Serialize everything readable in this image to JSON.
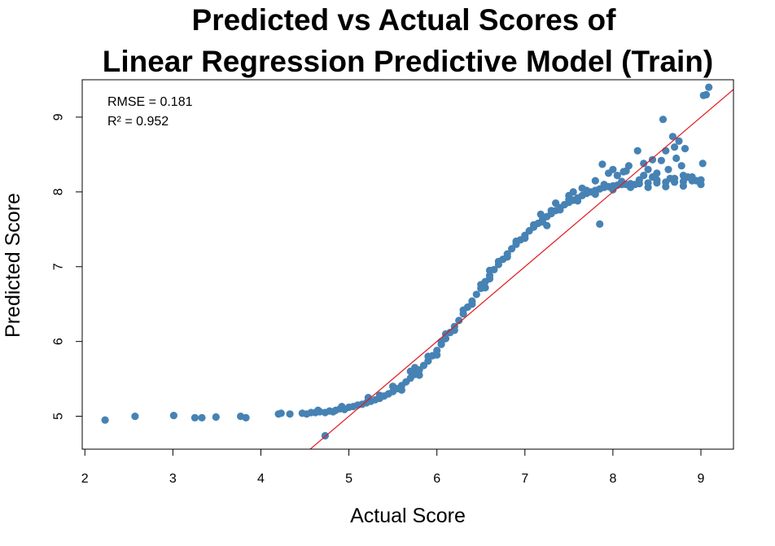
{
  "chart_data": {
    "type": "scatter",
    "title": [
      "Predicted vs Actual Scores of",
      "Linear Regression Predictive Model (Train)"
    ],
    "xlabel": "Actual Score",
    "ylabel": "Predicted Score",
    "xlim": [
      1.97,
      9.37
    ],
    "ylim": [
      4.56,
      9.5
    ],
    "x_ticks": [
      "2",
      "3",
      "4",
      "5",
      "6",
      "7",
      "8",
      "9"
    ],
    "y_ticks": [
      "5",
      "6",
      "7",
      "8",
      "9"
    ],
    "point_color": "#4682b4",
    "line_color": "#e0191e",
    "reference_line": {
      "type": "y=x",
      "from": [
        4.56,
        4.56
      ],
      "to": [
        9.37,
        9.37
      ]
    },
    "annotations": [
      "RMSE = 0.181",
      "R² = 0.952"
    ],
    "grid": false,
    "points": [
      [
        2.23,
        4.95
      ],
      [
        2.57,
        5.0
      ],
      [
        3.01,
        5.01
      ],
      [
        3.25,
        4.98
      ],
      [
        3.33,
        4.98
      ],
      [
        3.49,
        4.99
      ],
      [
        3.77,
        5.0
      ],
      [
        3.83,
        4.98
      ],
      [
        4.2,
        5.03
      ],
      [
        4.23,
        5.04
      ],
      [
        4.33,
        5.03
      ],
      [
        4.47,
        5.04
      ],
      [
        4.52,
        5.03
      ],
      [
        4.57,
        5.05
      ],
      [
        4.62,
        5.05
      ],
      [
        4.67,
        5.06
      ],
      [
        4.73,
        5.05
      ],
      [
        4.78,
        5.07
      ],
      [
        4.85,
        5.08
      ],
      [
        4.9,
        5.1
      ],
      [
        4.95,
        5.09
      ],
      [
        5.0,
        5.12
      ],
      [
        5.05,
        5.13
      ],
      [
        5.1,
        5.15
      ],
      [
        5.15,
        5.16
      ],
      [
        5.2,
        5.18
      ],
      [
        5.25,
        5.2
      ],
      [
        5.3,
        5.22
      ],
      [
        5.35,
        5.24
      ],
      [
        5.4,
        5.27
      ],
      [
        5.45,
        5.3
      ],
      [
        5.5,
        5.33
      ],
      [
        5.55,
        5.37
      ],
      [
        5.6,
        5.41
      ],
      [
        5.65,
        5.46
      ],
      [
        5.7,
        5.51
      ],
      [
        5.75,
        5.56
      ],
      [
        5.8,
        5.62
      ],
      [
        5.85,
        5.68
      ],
      [
        5.9,
        5.74
      ],
      [
        5.95,
        5.81
      ],
      [
        6.0,
        5.88
      ],
      [
        6.05,
        5.96
      ],
      [
        6.1,
        6.04
      ],
      [
        6.15,
        6.12
      ],
      [
        6.2,
        6.2
      ],
      [
        6.25,
        6.28
      ],
      [
        6.3,
        6.37
      ],
      [
        6.35,
        6.46
      ],
      [
        6.4,
        6.54
      ],
      [
        6.45,
        6.63
      ],
      [
        6.5,
        6.71
      ],
      [
        6.55,
        6.8
      ],
      [
        6.6,
        6.88
      ],
      [
        6.65,
        6.96
      ],
      [
        6.7,
        7.03
      ],
      [
        6.75,
        7.1
      ],
      [
        6.8,
        7.17
      ],
      [
        6.85,
        7.24
      ],
      [
        6.9,
        7.3
      ],
      [
        6.95,
        7.36
      ],
      [
        7.0,
        7.42
      ],
      [
        7.05,
        7.48
      ],
      [
        7.1,
        7.53
      ],
      [
        7.15,
        7.58
      ],
      [
        7.2,
        7.63
      ],
      [
        7.25,
        7.67
      ],
      [
        7.3,
        7.71
      ],
      [
        7.35,
        7.75
      ],
      [
        7.4,
        7.79
      ],
      [
        7.45,
        7.83
      ],
      [
        7.5,
        7.86
      ],
      [
        7.55,
        7.89
      ],
      [
        7.6,
        7.92
      ],
      [
        7.65,
        7.95
      ],
      [
        7.7,
        7.98
      ],
      [
        7.75,
        8.0
      ],
      [
        7.8,
        8.02
      ],
      [
        7.85,
        8.04
      ],
      [
        7.9,
        8.06
      ],
      [
        7.95,
        8.07
      ],
      [
        8.0,
        8.08
      ],
      [
        8.05,
        8.09
      ],
      [
        8.1,
        8.1
      ],
      [
        8.15,
        8.1
      ],
      [
        8.2,
        8.11
      ],
      [
        8.3,
        8.11
      ],
      [
        8.4,
        8.12
      ],
      [
        8.5,
        8.12
      ],
      [
        8.6,
        8.13
      ],
      [
        8.7,
        8.13
      ],
      [
        8.8,
        8.14
      ],
      [
        8.9,
        8.15
      ],
      [
        9.0,
        8.16
      ],
      [
        5.5,
        5.4
      ],
      [
        5.7,
        5.6
      ],
      [
        5.9,
        5.8
      ],
      [
        6.1,
        6.1
      ],
      [
        6.3,
        6.42
      ],
      [
        6.5,
        6.76
      ],
      [
        6.7,
        7.07
      ],
      [
        6.9,
        7.34
      ],
      [
        7.1,
        7.56
      ],
      [
        7.3,
        7.75
      ],
      [
        7.5,
        7.9
      ],
      [
        7.7,
        8.02
      ],
      [
        7.9,
        8.1
      ],
      [
        8.1,
        8.14
      ],
      [
        8.3,
        8.16
      ],
      [
        8.5,
        8.16
      ],
      [
        8.7,
        8.18
      ],
      [
        8.9,
        8.2
      ],
      [
        5.6,
        5.35
      ],
      [
        5.8,
        5.55
      ],
      [
        6.0,
        5.82
      ],
      [
        6.2,
        6.15
      ],
      [
        6.4,
        6.5
      ],
      [
        6.6,
        6.84
      ],
      [
        6.8,
        7.13
      ],
      [
        7.0,
        7.38
      ],
      [
        7.2,
        7.6
      ],
      [
        7.4,
        7.76
      ],
      [
        7.6,
        7.88
      ],
      [
        7.8,
        7.97
      ],
      [
        8.0,
        8.03
      ],
      [
        8.2,
        8.06
      ],
      [
        8.4,
        8.06
      ],
      [
        8.6,
        8.07
      ],
      [
        8.8,
        8.08
      ],
      [
        9.0,
        8.1
      ],
      [
        4.73,
        4.74
      ],
      [
        7.18,
        7.7
      ],
      [
        7.35,
        7.85
      ],
      [
        7.5,
        7.95
      ],
      [
        7.65,
        8.05
      ],
      [
        7.8,
        8.15
      ],
      [
        7.85,
        7.57
      ],
      [
        7.88,
        8.37
      ],
      [
        8.0,
        8.3
      ],
      [
        8.12,
        8.27
      ],
      [
        8.18,
        8.35
      ],
      [
        8.25,
        8.1
      ],
      [
        8.28,
        8.55
      ],
      [
        8.35,
        8.38
      ],
      [
        8.4,
        8.3
      ],
      [
        8.45,
        8.43
      ],
      [
        8.5,
        8.25
      ],
      [
        8.55,
        8.42
      ],
      [
        8.57,
        8.97
      ],
      [
        8.6,
        8.55
      ],
      [
        8.63,
        8.3
      ],
      [
        8.68,
        8.74
      ],
      [
        8.7,
        8.6
      ],
      [
        8.72,
        8.45
      ],
      [
        8.75,
        8.68
      ],
      [
        8.78,
        8.35
      ],
      [
        8.82,
        8.58
      ],
      [
        8.85,
        8.2
      ],
      [
        8.9,
        8.18
      ],
      [
        8.95,
        8.15
      ],
      [
        9.02,
        8.38
      ],
      [
        9.03,
        9.29
      ],
      [
        9.06,
        9.3
      ],
      [
        9.09,
        9.4
      ],
      [
        8.8,
        8.22
      ],
      [
        8.65,
        8.18
      ],
      [
        8.45,
        8.2
      ],
      [
        8.35,
        8.22
      ],
      [
        8.15,
        8.28
      ],
      [
        8.05,
        8.22
      ],
      [
        7.95,
        8.25
      ],
      [
        7.55,
        8.0
      ],
      [
        7.25,
        7.55
      ],
      [
        6.6,
        6.95
      ],
      [
        6.55,
        6.72
      ],
      [
        6.05,
        6.0
      ],
      [
        5.75,
        5.65
      ],
      [
        5.35,
        5.28
      ],
      [
        5.22,
        5.25
      ],
      [
        4.92,
        5.13
      ],
      [
        4.82,
        5.06
      ],
      [
        4.65,
        5.08
      ]
    ]
  }
}
